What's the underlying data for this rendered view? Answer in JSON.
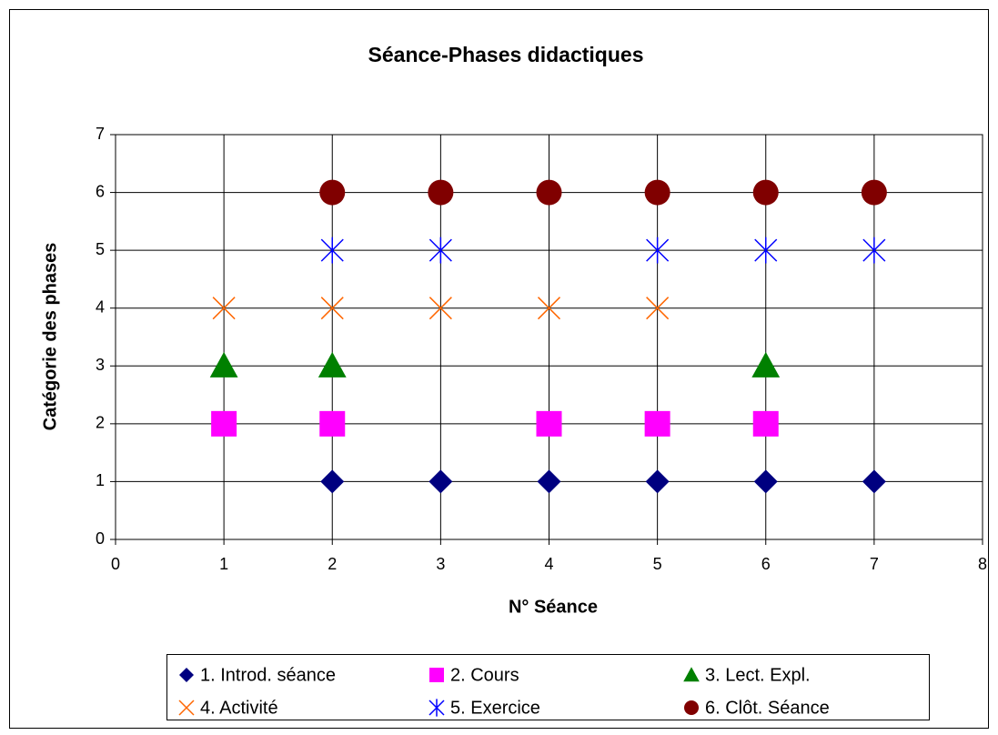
{
  "chart_data": {
    "type": "scatter",
    "title": "Séance-Phases didactiques",
    "xlabel": "N° Séance",
    "ylabel": "Catégorie des phases",
    "xlim": [
      0,
      8
    ],
    "xticks": [
      0,
      1,
      2,
      3,
      4,
      5,
      6,
      7,
      8
    ],
    "ylim": [
      0,
      7
    ],
    "yticks": [
      0,
      1,
      2,
      3,
      4,
      5,
      6,
      7
    ],
    "grid": true,
    "legend": "bottom",
    "series": [
      {
        "name": "1. Introd. séance",
        "color": "#000080",
        "marker": "diamond",
        "x": [
          2,
          3,
          4,
          5,
          6,
          7
        ],
        "values": [
          1,
          1,
          1,
          1,
          1,
          1
        ]
      },
      {
        "name": "2. Cours",
        "color": "#ff00ff",
        "marker": "square",
        "x": [
          1,
          2,
          4,
          5,
          6
        ],
        "values": [
          2,
          2,
          2,
          2,
          2
        ]
      },
      {
        "name": "3. Lect. Expl.",
        "color": "#008000",
        "marker": "triangle",
        "x": [
          1,
          2,
          6
        ],
        "values": [
          3,
          3,
          3
        ]
      },
      {
        "name": "4. Activité",
        "color": "#ff6600",
        "marker": "x",
        "x": [
          1,
          2,
          3,
          4,
          5
        ],
        "values": [
          4,
          4,
          4,
          4,
          4
        ]
      },
      {
        "name": "5. Exercice",
        "color": "#0000ff",
        "marker": "star",
        "x": [
          2,
          3,
          5,
          6,
          7
        ],
        "values": [
          5,
          5,
          5,
          5,
          5
        ]
      },
      {
        "name": "6. Clôt. Séance",
        "color": "#800000",
        "marker": "circle",
        "x": [
          2,
          3,
          4,
          5,
          6,
          7
        ],
        "values": [
          6,
          6,
          6,
          6,
          6,
          6
        ]
      }
    ]
  }
}
